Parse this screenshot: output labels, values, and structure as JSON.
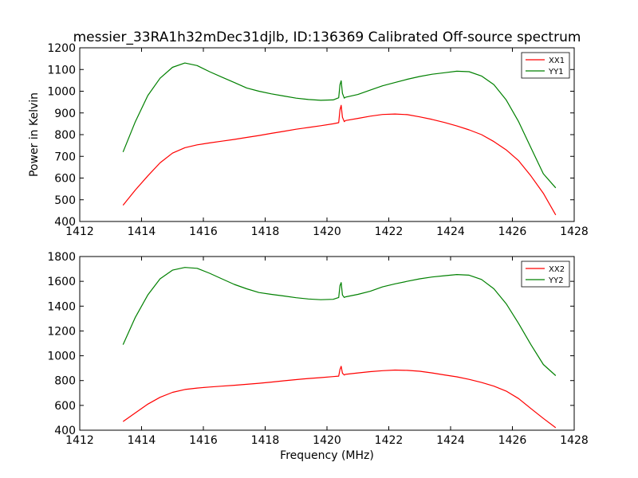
{
  "figure": {
    "title": "messier_33RA1h32mDec31djlb, ID:136369 Calibrated Off-source spectrum",
    "xlabel": "Frequency (MHz)",
    "ylabel": "Power in Kelvin"
  },
  "chart_data": [
    {
      "type": "line",
      "title": "messier_33RA1h32mDec31djlb, ID:136369 Calibrated Off-source spectrum",
      "xlabel": "",
      "ylabel": "Power in Kelvin",
      "xlim": [
        1412,
        1428
      ],
      "ylim": [
        400,
        1200
      ],
      "xticks": [
        1412,
        1414,
        1416,
        1418,
        1420,
        1422,
        1424,
        1426,
        1428
      ],
      "yticks": [
        400,
        500,
        600,
        700,
        800,
        900,
        1000,
        1100,
        1200
      ],
      "legend": "top-right",
      "grid": false,
      "series": [
        {
          "name": "XX1",
          "color": "#ff0000",
          "x": [
            1413.4,
            1413.8,
            1414.2,
            1414.6,
            1415.0,
            1415.4,
            1415.8,
            1416.2,
            1416.6,
            1417.0,
            1417.4,
            1417.8,
            1418.2,
            1418.6,
            1419.0,
            1419.4,
            1419.8,
            1420.2,
            1420.38,
            1420.42,
            1420.46,
            1420.5,
            1420.56,
            1420.6,
            1421.0,
            1421.4,
            1421.8,
            1422.2,
            1422.6,
            1423.0,
            1423.4,
            1423.8,
            1424.2,
            1424.6,
            1425.0,
            1425.4,
            1425.8,
            1426.2,
            1426.6,
            1427.0,
            1427.4
          ],
          "values": [
            475,
            545,
            610,
            670,
            715,
            740,
            753,
            762,
            770,
            778,
            787,
            796,
            806,
            815,
            825,
            833,
            841,
            850,
            855,
            915,
            935,
            880,
            860,
            865,
            875,
            885,
            893,
            895,
            892,
            882,
            870,
            856,
            840,
            822,
            800,
            768,
            730,
            680,
            610,
            530,
            430
          ]
        },
        {
          "name": "YY1",
          "color": "#008000",
          "x": [
            1413.4,
            1413.8,
            1414.2,
            1414.6,
            1415.0,
            1415.4,
            1415.8,
            1416.2,
            1416.6,
            1417.0,
            1417.4,
            1417.8,
            1418.2,
            1418.6,
            1419.0,
            1419.4,
            1419.8,
            1420.2,
            1420.38,
            1420.42,
            1420.46,
            1420.5,
            1420.56,
            1420.6,
            1421.0,
            1421.4,
            1421.8,
            1422.2,
            1422.6,
            1423.0,
            1423.4,
            1423.8,
            1424.2,
            1424.6,
            1425.0,
            1425.4,
            1425.8,
            1426.2,
            1426.6,
            1427.0,
            1427.4
          ],
          "values": [
            720,
            860,
            980,
            1060,
            1110,
            1130,
            1118,
            1090,
            1065,
            1040,
            1015,
            1000,
            988,
            978,
            968,
            962,
            958,
            960,
            970,
            1030,
            1048,
            990,
            968,
            972,
            985,
            1005,
            1025,
            1040,
            1055,
            1068,
            1078,
            1085,
            1092,
            1090,
            1070,
            1030,
            960,
            860,
            740,
            620,
            555
          ]
        }
      ]
    },
    {
      "type": "line",
      "title": "",
      "xlabel": "Frequency (MHz)",
      "ylabel": "",
      "xlim": [
        1412,
        1428
      ],
      "ylim": [
        400,
        1800
      ],
      "xticks": [
        1412,
        1414,
        1416,
        1418,
        1420,
        1422,
        1424,
        1426,
        1428
      ],
      "yticks": [
        400,
        600,
        800,
        1000,
        1200,
        1400,
        1600,
        1800
      ],
      "legend": "top-right",
      "grid": false,
      "series": [
        {
          "name": "XX2",
          "color": "#ff0000",
          "x": [
            1413.4,
            1413.8,
            1414.2,
            1414.6,
            1415.0,
            1415.4,
            1415.8,
            1416.2,
            1416.6,
            1417.0,
            1417.4,
            1417.8,
            1418.2,
            1418.6,
            1419.0,
            1419.4,
            1419.8,
            1420.2,
            1420.38,
            1420.42,
            1420.46,
            1420.5,
            1420.56,
            1420.6,
            1421.0,
            1421.4,
            1421.8,
            1422.2,
            1422.6,
            1423.0,
            1423.4,
            1423.8,
            1424.2,
            1424.6,
            1425.0,
            1425.4,
            1425.8,
            1426.2,
            1426.6,
            1427.0,
            1427.4
          ],
          "values": [
            470,
            540,
            610,
            665,
            705,
            728,
            740,
            748,
            755,
            762,
            770,
            778,
            788,
            798,
            808,
            817,
            824,
            832,
            836,
            890,
            915,
            860,
            845,
            850,
            862,
            872,
            880,
            885,
            882,
            875,
            862,
            846,
            830,
            810,
            785,
            755,
            715,
            655,
            575,
            495,
            420
          ]
        },
        {
          "name": "YY2",
          "color": "#008000",
          "x": [
            1413.4,
            1413.8,
            1414.2,
            1414.6,
            1415.0,
            1415.4,
            1415.8,
            1416.2,
            1416.6,
            1417.0,
            1417.4,
            1417.8,
            1418.2,
            1418.6,
            1419.0,
            1419.4,
            1419.8,
            1420.2,
            1420.38,
            1420.42,
            1420.46,
            1420.5,
            1420.56,
            1420.6,
            1421.0,
            1421.4,
            1421.8,
            1422.2,
            1422.6,
            1423.0,
            1423.4,
            1423.8,
            1424.2,
            1424.6,
            1425.0,
            1425.4,
            1425.8,
            1426.2,
            1426.6,
            1427.0,
            1427.4
          ],
          "values": [
            1090,
            1310,
            1490,
            1620,
            1690,
            1712,
            1705,
            1665,
            1620,
            1575,
            1540,
            1510,
            1495,
            1482,
            1468,
            1458,
            1452,
            1455,
            1470,
            1565,
            1590,
            1490,
            1470,
            1475,
            1495,
            1520,
            1555,
            1580,
            1600,
            1620,
            1635,
            1645,
            1655,
            1650,
            1615,
            1540,
            1420,
            1260,
            1090,
            930,
            840
          ]
        }
      ]
    }
  ]
}
